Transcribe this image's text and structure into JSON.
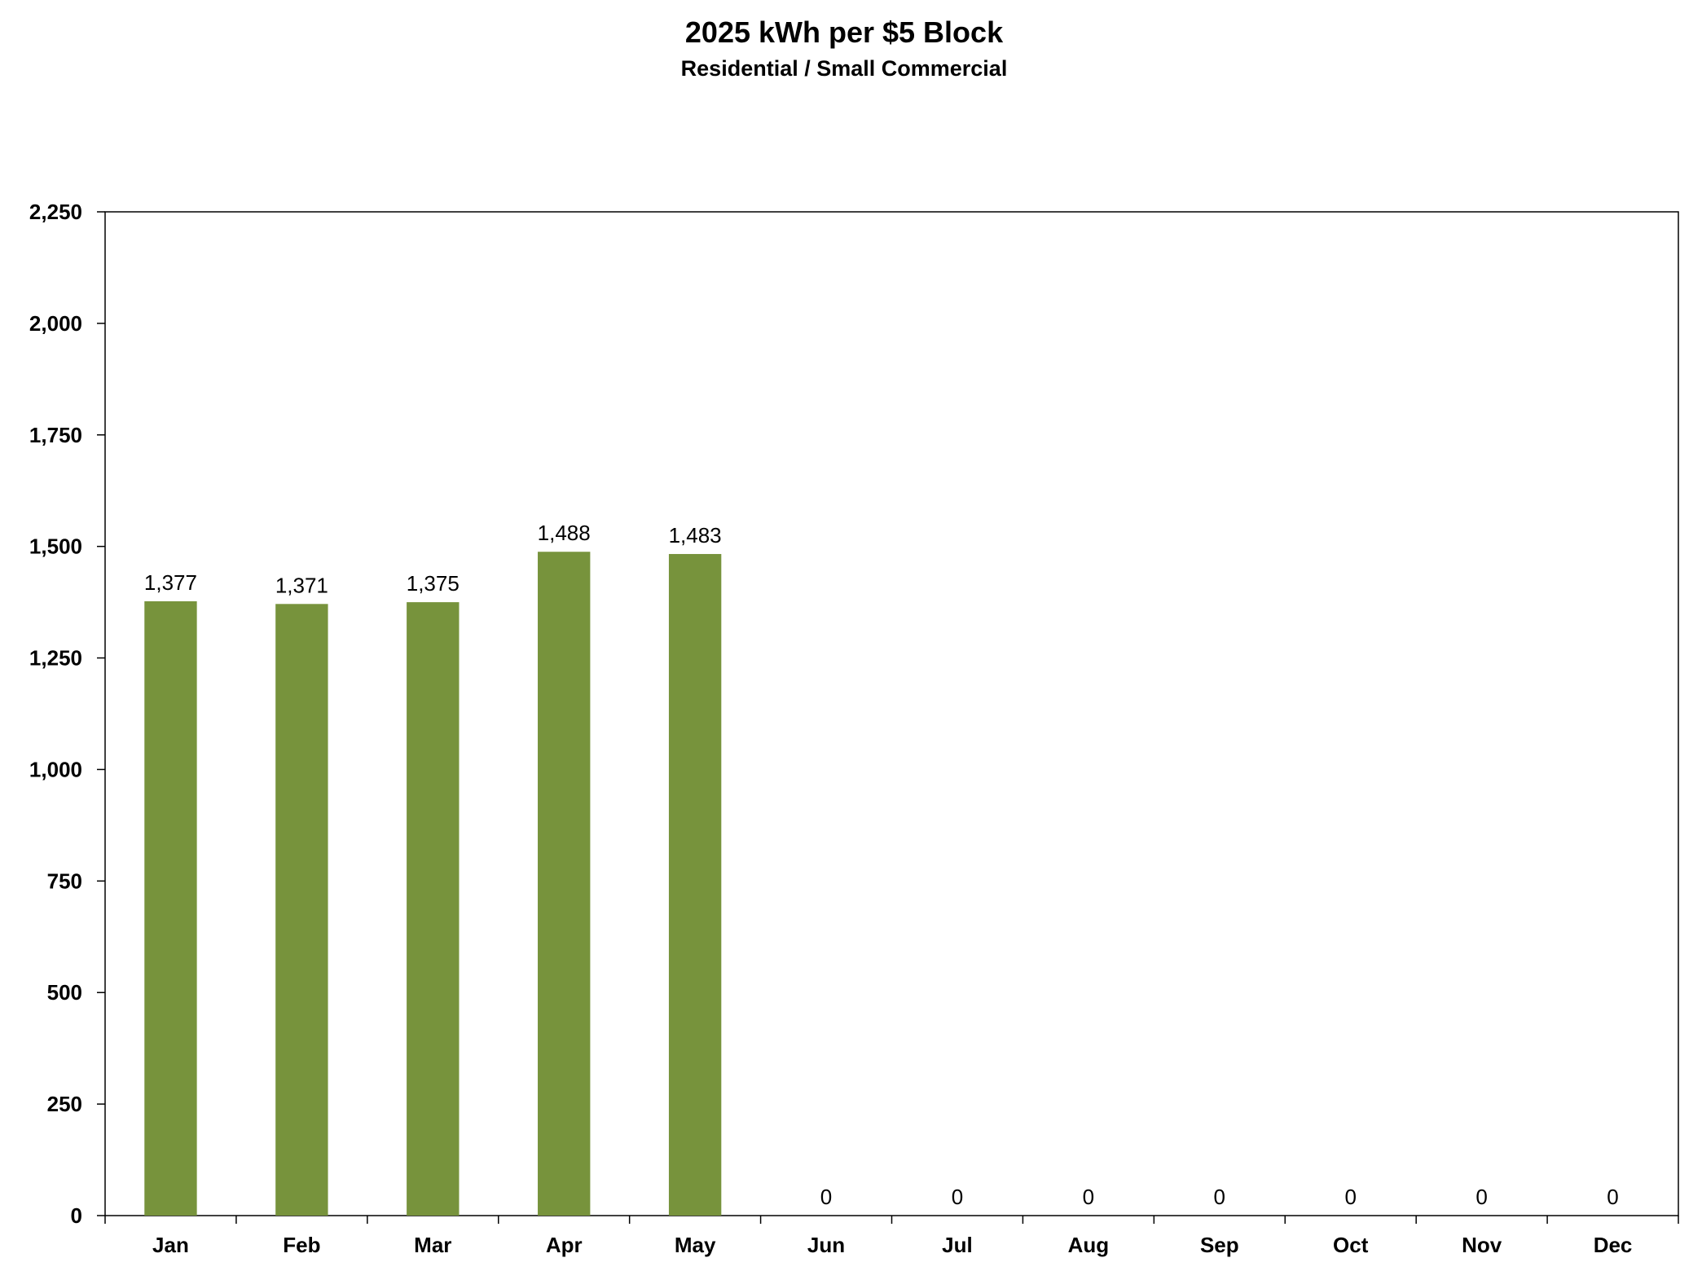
{
  "chart_data": {
    "type": "bar",
    "title": "2025 kWh per $5 Block",
    "subtitle": "Residential / Small Commercial",
    "categories": [
      "Jan",
      "Feb",
      "Mar",
      "Apr",
      "May",
      "Jun",
      "Jul",
      "Aug",
      "Sep",
      "Oct",
      "Nov",
      "Dec"
    ],
    "values": [
      1377,
      1371,
      1375,
      1488,
      1483,
      0,
      0,
      0,
      0,
      0,
      0,
      0
    ],
    "data_labels": [
      "1,377",
      "1,371",
      "1,375",
      "1,488",
      "1,483",
      "0",
      "0",
      "0",
      "0",
      "0",
      "0",
      "0"
    ],
    "y_ticks": [
      0,
      250,
      500,
      750,
      1000,
      1250,
      1500,
      1750,
      2000,
      2250
    ],
    "y_tick_labels": [
      "0",
      "250",
      "500",
      "750",
      "1,000",
      "1,250",
      "1,500",
      "1,750",
      "2,000",
      "2,250"
    ],
    "ylim": [
      0,
      2250
    ],
    "grid": false,
    "legend": "none",
    "bar_color": "#77933C"
  }
}
